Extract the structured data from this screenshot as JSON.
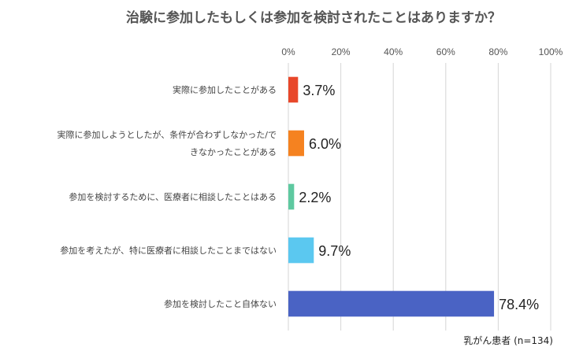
{
  "chart_data": {
    "type": "bar",
    "orientation": "horizontal",
    "title": "治験に参加したもしくは参加を検討されたことはありますか？",
    "xlim": [
      0,
      100
    ],
    "grid": true,
    "x_ticks": [
      "0%",
      "20%",
      "40%",
      "60%",
      "80%",
      "100%"
    ],
    "x_tick_values": [
      0,
      20,
      40,
      60,
      80,
      100
    ],
    "categories": [
      {
        "lines": [
          "実際に参加したことがある"
        ]
      },
      {
        "lines": [
          "実際に参加しようとしたが、条件が合わずしなかった/で",
          "きなかったことがある"
        ]
      },
      {
        "lines": [
          "参加を検討するために、医療者に相談したことはある"
        ]
      },
      {
        "lines": [
          "参加を考えたが、特に医療者に相談したことまではない"
        ]
      },
      {
        "lines": [
          "参加を検討したこと自体ない"
        ]
      }
    ],
    "values": [
      3.7,
      6.0,
      2.2,
      9.7,
      78.4
    ],
    "data_labels": [
      "3.7%",
      "6.0%",
      "2.2%",
      "9.7%",
      "78.4%"
    ],
    "bar_colors": [
      "#e8472a",
      "#f58220",
      "#5ec9a0",
      "#5bc8f0",
      "#4a63c4"
    ],
    "note": "乳がん患者 (n=134)"
  }
}
